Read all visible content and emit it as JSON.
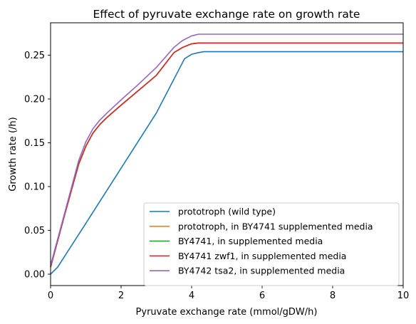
{
  "chart_data": {
    "type": "line",
    "title": "Effect of pyruvate exchange rate on growth rate",
    "xlabel": "Pyruvate exchange rate (mmol/gDW/h)",
    "ylabel": "Growth rate (/h)",
    "xlim": [
      0,
      10
    ],
    "ylim": [
      -0.013,
      0.287
    ],
    "xticks": [
      "0",
      "2",
      "4",
      "6",
      "8",
      "10"
    ],
    "xtick_values": [
      0,
      2,
      4,
      6,
      8,
      10
    ],
    "yticks": [
      "0.00",
      "0.05",
      "0.10",
      "0.15",
      "0.20",
      "0.25"
    ],
    "ytick_values": [
      0,
      0.05,
      0.1,
      0.15,
      0.2,
      0.25
    ],
    "grid": false,
    "legend_position": "lower-right",
    "series": [
      {
        "name": "prototroph (wild type)",
        "color": "#1f77b4",
        "x": [
          0,
          0.2,
          0.6,
          1.0,
          2.0,
          3.0,
          3.8,
          4.0,
          4.2,
          4.35,
          10
        ],
        "y": [
          0,
          0.008,
          0.033,
          0.058,
          0.121,
          0.184,
          0.246,
          0.251,
          0.253,
          0.254,
          0.254
        ]
      },
      {
        "name": "prototroph, in BY4741 supplemented media",
        "color": "#ff7f0e",
        "x": [
          0,
          0.2,
          0.4,
          0.6,
          0.8,
          1.0,
          1.2,
          1.4,
          1.6,
          2.0,
          2.5,
          3.0,
          3.5,
          3.75,
          4.0,
          4.2,
          10
        ],
        "y": [
          0.008,
          0.038,
          0.068,
          0.097,
          0.126,
          0.146,
          0.161,
          0.171,
          0.179,
          0.193,
          0.21,
          0.227,
          0.253,
          0.259,
          0.263,
          0.264,
          0.264
        ]
      },
      {
        "name": "BY4741, in supplemented media",
        "color": "#2ca02c",
        "x": [
          0,
          0.2,
          0.4,
          0.6,
          0.8,
          1.0,
          1.2,
          1.4,
          1.6,
          2.0,
          2.5,
          3.0,
          3.5,
          3.75,
          4.0,
          4.2,
          10
        ],
        "y": [
          0.008,
          0.038,
          0.068,
          0.097,
          0.126,
          0.146,
          0.161,
          0.171,
          0.179,
          0.193,
          0.21,
          0.227,
          0.253,
          0.259,
          0.263,
          0.264,
          0.264
        ]
      },
      {
        "name": "BY4741 zwf1, in supplemented media",
        "color": "#d62728",
        "x": [
          0,
          0.2,
          0.4,
          0.6,
          0.8,
          1.0,
          1.2,
          1.4,
          1.6,
          2.0,
          2.5,
          3.0,
          3.5,
          3.75,
          4.0,
          4.2,
          10
        ],
        "y": [
          0.008,
          0.038,
          0.068,
          0.097,
          0.126,
          0.146,
          0.161,
          0.171,
          0.179,
          0.193,
          0.21,
          0.227,
          0.253,
          0.259,
          0.263,
          0.264,
          0.264
        ]
      },
      {
        "name": "BY4742 tsa2, in supplemented media",
        "color": "#9467bd",
        "x": [
          0,
          0.2,
          0.4,
          0.6,
          0.8,
          1.0,
          1.2,
          1.4,
          1.6,
          2.0,
          2.5,
          3.0,
          3.5,
          3.75,
          4.0,
          4.2,
          10
        ],
        "y": [
          0.01,
          0.04,
          0.07,
          0.1,
          0.13,
          0.151,
          0.166,
          0.176,
          0.184,
          0.199,
          0.217,
          0.236,
          0.259,
          0.267,
          0.272,
          0.274,
          0.274
        ]
      }
    ]
  }
}
